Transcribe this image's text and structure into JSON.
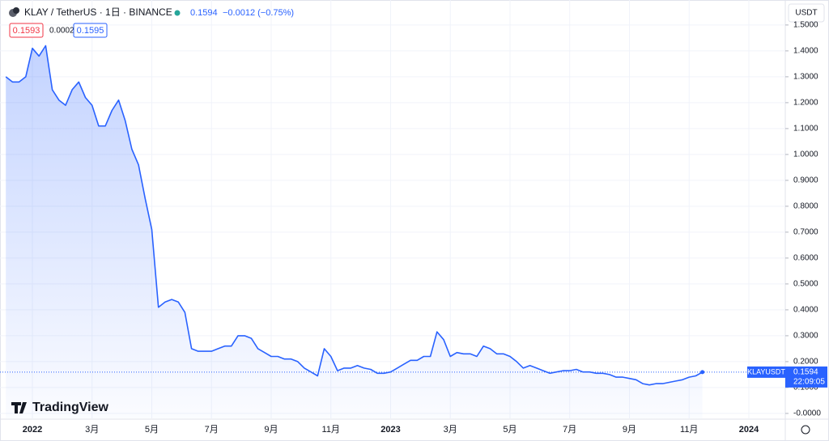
{
  "chart_data": {
    "type": "line",
    "symbol": "KLAY / TetherUS · 1日 · BINANCE",
    "last_price": "0.1594",
    "change": "−0.0012 (−0.75%)",
    "bid": "0.1593",
    "spread": "0.0002",
    "ask": "0.1595",
    "currency": "USDT",
    "price_label": {
      "name": "KLAYUSDT",
      "price": "0.1594",
      "countdown": "22:09:05"
    },
    "watermark": "TradingView",
    "color": "#2962ff",
    "categories": [
      null,
      null,
      null,
      null,
      "2022",
      null,
      null,
      null,
      null,
      null,
      null,
      null,
      null,
      "3月",
      null,
      null,
      null,
      null,
      null,
      null,
      null,
      null,
      "5月",
      null,
      null,
      null,
      null,
      null,
      null,
      null,
      null,
      "7月",
      null,
      null,
      null,
      null,
      null,
      null,
      null,
      null,
      "9月",
      null,
      null,
      null,
      null,
      null,
      null,
      null,
      null,
      "11月",
      null,
      null,
      null,
      null,
      null,
      null,
      null,
      null,
      "2023",
      null,
      null,
      null,
      null,
      null,
      null,
      null,
      null,
      "3月",
      null,
      null,
      null,
      null,
      null,
      null,
      null,
      null,
      "5月",
      null,
      null,
      null,
      null,
      null,
      null,
      null,
      null,
      "7月",
      null,
      null,
      null,
      null,
      null,
      null,
      null,
      null,
      "9月",
      null,
      null,
      null,
      null,
      null,
      null,
      null,
      null,
      "11月",
      null,
      null,
      null,
      null,
      null,
      null,
      null,
      null,
      "2024",
      null,
      null,
      null,
      null,
      null
    ],
    "series": [
      {
        "name": "KLAYUSDT",
        "color": "#2962ff",
        "values": [
          1.3,
          1.28,
          1.28,
          1.3,
          1.41,
          1.38,
          1.42,
          1.25,
          1.21,
          1.19,
          1.25,
          1.28,
          1.22,
          1.19,
          1.11,
          1.11,
          1.17,
          1.21,
          1.13,
          1.02,
          0.96,
          0.83,
          0.71,
          0.41,
          0.43,
          0.44,
          0.43,
          0.39,
          0.25,
          0.24,
          0.24,
          0.24,
          0.25,
          0.26,
          0.26,
          0.3,
          0.3,
          0.29,
          0.25,
          0.235,
          0.22,
          0.22,
          0.21,
          0.21,
          0.2,
          0.175,
          0.16,
          0.145,
          0.25,
          0.22,
          0.165,
          0.175,
          0.175,
          0.185,
          0.175,
          0.17,
          0.155,
          0.155,
          0.16,
          0.175,
          0.19,
          0.205,
          0.205,
          0.22,
          0.22,
          0.315,
          0.285,
          0.22,
          0.235,
          0.23,
          0.23,
          0.22,
          0.26,
          0.25,
          0.23,
          0.23,
          0.22,
          0.2,
          0.175,
          0.185,
          0.175,
          0.165,
          0.155,
          0.16,
          0.165,
          0.165,
          0.17,
          0.16,
          0.16,
          0.155,
          0.155,
          0.15,
          0.14,
          0.14,
          0.135,
          0.13,
          0.115,
          0.11,
          0.115,
          0.115,
          0.12,
          0.125,
          0.13,
          0.14,
          0.145,
          0.1594,
          null,
          null,
          null,
          null,
          null,
          null,
          null,
          null,
          null,
          null,
          null,
          null
        ]
      }
    ],
    "ylim": [
      -0.019,
      1.584
    ],
    "yticks": [
      {
        "value": 1.5,
        "label": "1.5000"
      },
      {
        "value": 1.4,
        "label": "1.4000"
      },
      {
        "value": 1.3,
        "label": "1.3000"
      },
      {
        "value": 1.2,
        "label": "1.2000"
      },
      {
        "value": 1.1,
        "label": "1.1000"
      },
      {
        "value": 1.0,
        "label": "1.0000"
      },
      {
        "value": 0.9,
        "label": "0.9000"
      },
      {
        "value": 0.8,
        "label": "0.8000"
      },
      {
        "value": 0.7,
        "label": "0.7000"
      },
      {
        "value": 0.6,
        "label": "0.6000"
      },
      {
        "value": 0.5,
        "label": "0.5000"
      },
      {
        "value": 0.4,
        "label": "0.4000"
      },
      {
        "value": 0.3,
        "label": "0.3000"
      },
      {
        "value": 0.2,
        "label": "0.2000"
      },
      {
        "value": 0.1,
        "label": "0.1000"
      },
      {
        "value": 0,
        "label": "-0.0000"
      }
    ],
    "grid": true
  }
}
